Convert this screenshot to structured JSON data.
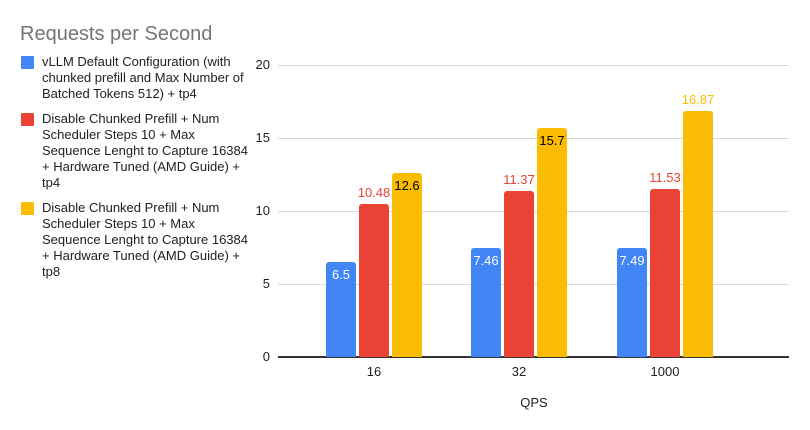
{
  "chart_data": {
    "type": "bar",
    "title": "Requests per Second",
    "xlabel": "QPS",
    "ylabel": "",
    "categories": [
      "16",
      "32",
      "1000"
    ],
    "yticks": [
      0,
      5,
      10,
      15,
      20
    ],
    "ylim": [
      0,
      20
    ],
    "grid": true,
    "legend_position": "left",
    "series": [
      {
        "name": "vLLM Default Configuration (with chunked prefill and Max Number of Batched Tokens 512) + tp4",
        "color": "#4285F4",
        "values": [
          6.5,
          7.46,
          7.49
        ],
        "labels": [
          "6.5",
          "7.46",
          "7.49"
        ],
        "label_placement": [
          "inside",
          "inside",
          "inside"
        ],
        "label_colors": [
          "#FFFFFF",
          "#FFFFFF",
          "#FFFFFF"
        ]
      },
      {
        "name": "Disable Chunked Prefill + Num Scheduler Steps 10 + Max Sequence Lenght to Capture 16384 + Hardware Tuned (AMD Guide) + tp4",
        "color": "#EA4335",
        "values": [
          10.48,
          11.37,
          11.53
        ],
        "labels": [
          "10.48",
          "11.37",
          "11.53"
        ],
        "label_placement": [
          "above",
          "above",
          "above"
        ],
        "label_colors": [
          "#EA4335",
          "#EA4335",
          "#EA4335"
        ]
      },
      {
        "name": "Disable Chunked Prefill + Num Scheduler Steps 10 + Max Sequence Lenght to Capture 16384 + Hardware Tuned (AMD Guide) + tp8",
        "color": "#FBBC04",
        "values": [
          12.6,
          15.7,
          16.87
        ],
        "labels": [
          "12.6",
          "15.7",
          "16.87"
        ],
        "label_placement": [
          "inside",
          "inside",
          "above"
        ],
        "label_colors": [
          "#000000",
          "#000000",
          "#FBBC04"
        ]
      }
    ],
    "colors": {
      "background": "#FFFFFF",
      "title_text": "#757575",
      "legend_text": "#212121",
      "axis_text": "#212121",
      "gridline": "#D9D9D9",
      "baseline": "#333333"
    }
  }
}
